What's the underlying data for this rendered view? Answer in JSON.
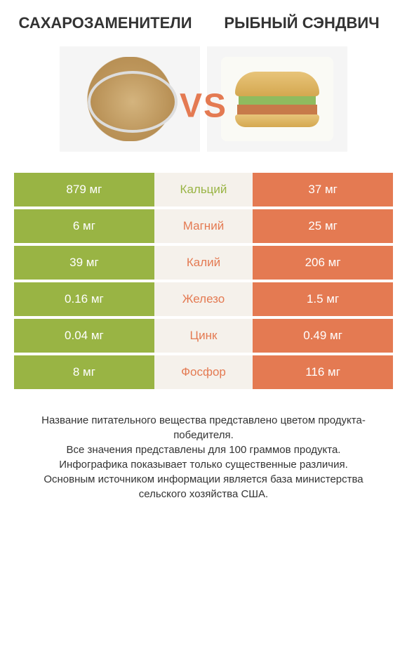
{
  "colors": {
    "left": "#99b444",
    "right": "#e47a52",
    "mid_bg": "#f5f1eb",
    "vs": "#e47a52"
  },
  "header": {
    "left_title": "Сахарозаменители",
    "right_title": "Рыбный сэндвич",
    "vs_label": "VS"
  },
  "rows": [
    {
      "left": "879 мг",
      "name": "Кальций",
      "right": "37 мг",
      "winner": "left"
    },
    {
      "left": "6 мг",
      "name": "Магний",
      "right": "25 мг",
      "winner": "right"
    },
    {
      "left": "39 мг",
      "name": "Калий",
      "right": "206 мг",
      "winner": "right"
    },
    {
      "left": "0.16 мг",
      "name": "Железо",
      "right": "1.5 мг",
      "winner": "right"
    },
    {
      "left": "0.04 мг",
      "name": "Цинк",
      "right": "0.49 мг",
      "winner": "right"
    },
    {
      "left": "8 мг",
      "name": "Фосфор",
      "right": "116 мг",
      "winner": "right"
    }
  ],
  "footer": {
    "line1": "Название питательного вещества представлено цветом продукта-победителя.",
    "line2": "Все значения представлены для 100 граммов продукта.",
    "line3": "Инфографика показывает только существенные различия.",
    "line4": "Основным источником информации является база министерства сельского хозяйства США."
  }
}
